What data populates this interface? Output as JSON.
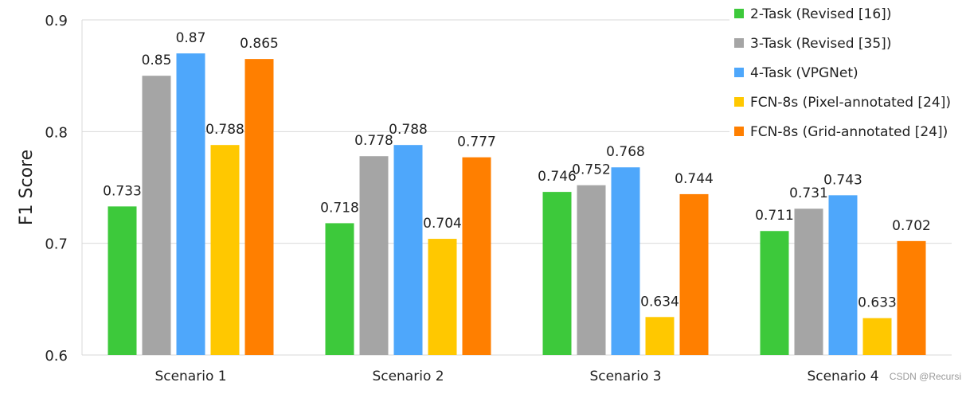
{
  "chart_data": {
    "type": "bar",
    "title": "",
    "xlabel": "",
    "ylabel": "F1 Score",
    "ylim": [
      0.6,
      0.9
    ],
    "yticks": [
      "0.6",
      "0.7",
      "0.8",
      "0.9"
    ],
    "grid": true,
    "legend_position": "top-right",
    "categories": [
      "Scenario 1",
      "Scenario 2",
      "Scenario 3",
      "Scenario 4"
    ],
    "series": [
      {
        "name": "2-Task (Revised [16])",
        "color": "#3dc93b",
        "values": [
          0.733,
          0.718,
          0.746,
          0.711
        ],
        "labels": [
          "0.733",
          "0.718",
          "0.746",
          "0.711"
        ]
      },
      {
        "name": "3-Task (Revised [35])",
        "color": "#a5a5a5",
        "values": [
          0.85,
          0.778,
          0.752,
          0.731
        ],
        "labels": [
          "0.85",
          "0.778",
          "0.752",
          "0.731"
        ]
      },
      {
        "name": "4-Task (VPGNet)",
        "color": "#4ea7fb",
        "values": [
          0.87,
          0.788,
          0.768,
          0.743
        ],
        "labels": [
          "0.87",
          "0.788",
          "0.768",
          "0.743"
        ]
      },
      {
        "name": "FCN-8s (Pixel-annotated [24])",
        "color": "#ffc800",
        "values": [
          0.788,
          0.704,
          0.634,
          0.633
        ],
        "labels": [
          "0.788",
          "0.704",
          "0.634",
          "0.633"
        ]
      },
      {
        "name": "FCN-8s (Grid-annotated [24])",
        "color": "#ff7f00",
        "values": [
          0.865,
          0.777,
          0.744,
          0.702
        ],
        "labels": [
          "0.865",
          "0.777",
          "0.744",
          "0.702"
        ]
      }
    ]
  },
  "watermark": "CSDN @Recursi"
}
